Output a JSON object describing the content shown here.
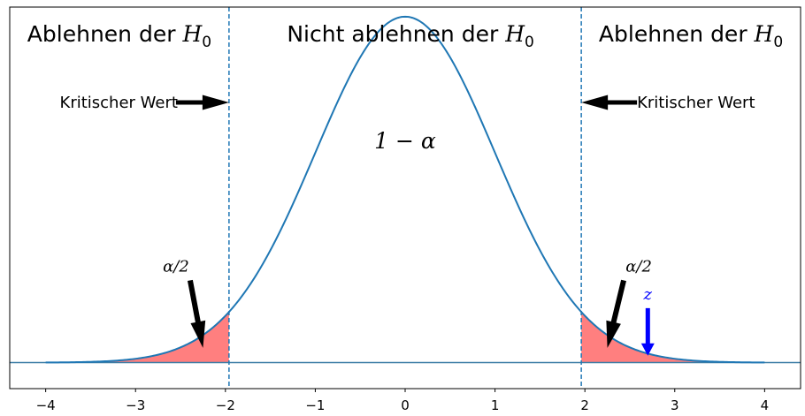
{
  "chart_data": {
    "type": "area",
    "title": "",
    "xlabel": "",
    "ylabel": "",
    "xlim": [
      -4.4,
      4.4
    ],
    "ylim": [
      -0.03,
      0.41
    ],
    "x_ticks": [
      -4,
      -3,
      -2,
      -1,
      0,
      1,
      2,
      3,
      4
    ],
    "x_tick_labels": [
      "−4",
      "−3",
      "−2",
      "−1",
      "0",
      "1",
      "2",
      "3",
      "4"
    ],
    "y_ticks_shown": false,
    "grid": false,
    "series": [
      {
        "role": "standard-normal-density",
        "mean": 0,
        "sd": 1,
        "x_range": [
          -4,
          4
        ],
        "peak_y": 0.3989,
        "color": "#1f77b4"
      }
    ],
    "baseline": {
      "y": 0,
      "color": "#3a7ca5"
    },
    "critical_values": {
      "lower": -1.96,
      "upper": 1.96,
      "line_color": "#1f77b4",
      "line_style": "dashed"
    },
    "shaded_tails": {
      "color": "#ff7f7f",
      "regions": [
        [
          -4,
          -1.96
        ],
        [
          1.96,
          4
        ]
      ]
    },
    "region_labels": {
      "left": {
        "text": "Ablehnen der ",
        "math_base": "H",
        "math_sub": "0"
      },
      "center": {
        "text": "Nicht ablehnen der ",
        "math_base": "H",
        "math_sub": "0"
      },
      "right": {
        "text": "Ablehnen der ",
        "math_base": "H",
        "math_sub": "0"
      }
    },
    "annotations": {
      "critical_left": {
        "text": "Kritischer Wert",
        "arrow_from_x": -2.55,
        "arrow_to_x": -1.96,
        "y": 0.3
      },
      "critical_right": {
        "text": "Kritischer Wert",
        "arrow_from_x": 2.58,
        "arrow_to_x": 1.96,
        "y": 0.3
      },
      "center_prob": {
        "text": "1 − α",
        "x": 0.0,
        "y": 0.255
      },
      "alpha_left": {
        "text": "α/2",
        "text_x": -2.55,
        "text_y": 0.105,
        "arrow_to_x": -2.25,
        "arrow_to_y": 0.017
      },
      "alpha_right": {
        "text": "α/2",
        "text_x": 2.55,
        "text_y": 0.105,
        "arrow_to_x": 2.25,
        "arrow_to_y": 0.017
      },
      "z_marker": {
        "text": "z",
        "x": 2.7,
        "text_y": 0.075,
        "arrow_to_y": 0.008,
        "color": "#0000ff"
      }
    }
  }
}
